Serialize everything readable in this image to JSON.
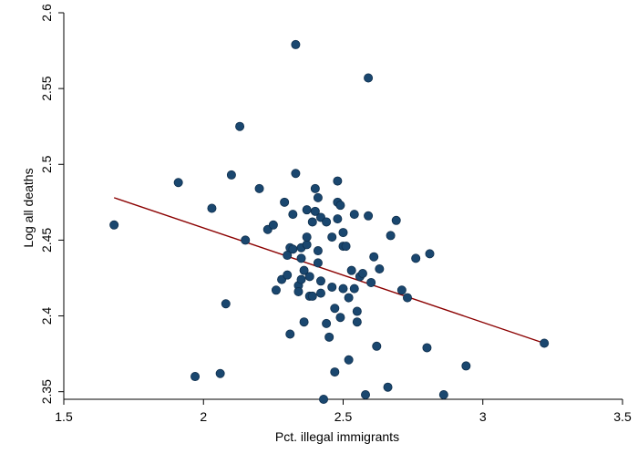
{
  "chart_data": {
    "type": "scatter",
    "title": "",
    "xlabel": "Pct. illegal immigrants",
    "ylabel": "Log all deaths",
    "xlim": [
      1.5,
      3.5
    ],
    "ylim": [
      2.345,
      2.6
    ],
    "xticks": [
      1.5,
      2,
      2.5,
      3,
      3.5
    ],
    "yticks": [
      2.35,
      2.4,
      2.45,
      2.5,
      2.55,
      2.6
    ],
    "xtick_labels": [
      "1.5",
      "2",
      "2.5",
      "3",
      "3.5"
    ],
    "ytick_labels": [
      "2.35",
      "2.4",
      "2.45",
      "2.5",
      "2.55",
      "2.6"
    ],
    "grid": false,
    "legend": "none",
    "marker_color": "#1a476f",
    "fit_line_color": "#8b0000",
    "fit_line": {
      "x": [
        1.68,
        3.22
      ],
      "y": [
        2.478,
        2.382
      ]
    },
    "points": [
      [
        1.68,
        2.46
      ],
      [
        1.91,
        2.488
      ],
      [
        1.97,
        2.36
      ],
      [
        2.03,
        2.471
      ],
      [
        2.06,
        2.362
      ],
      [
        2.08,
        2.408
      ],
      [
        2.1,
        2.493
      ],
      [
        2.13,
        2.525
      ],
      [
        2.15,
        2.45
      ],
      [
        2.2,
        2.484
      ],
      [
        2.23,
        2.457
      ],
      [
        2.25,
        2.46
      ],
      [
        2.26,
        2.417
      ],
      [
        2.28,
        2.424
      ],
      [
        2.29,
        2.475
      ],
      [
        2.3,
        2.44
      ],
      [
        2.3,
        2.427
      ],
      [
        2.31,
        2.445
      ],
      [
        2.31,
        2.388
      ],
      [
        2.32,
        2.467
      ],
      [
        2.32,
        2.444
      ],
      [
        2.33,
        2.579
      ],
      [
        2.33,
        2.494
      ],
      [
        2.34,
        2.42
      ],
      [
        2.34,
        2.416
      ],
      [
        2.35,
        2.445
      ],
      [
        2.35,
        2.424
      ],
      [
        2.35,
        2.438
      ],
      [
        2.36,
        2.43
      ],
      [
        2.36,
        2.396
      ],
      [
        2.37,
        2.447
      ],
      [
        2.37,
        2.47
      ],
      [
        2.37,
        2.452
      ],
      [
        2.38,
        2.426
      ],
      [
        2.38,
        2.413
      ],
      [
        2.39,
        2.462
      ],
      [
        2.39,
        2.413
      ],
      [
        2.4,
        2.484
      ],
      [
        2.4,
        2.469
      ],
      [
        2.41,
        2.443
      ],
      [
        2.41,
        2.435
      ],
      [
        2.41,
        2.478
      ],
      [
        2.42,
        2.465
      ],
      [
        2.42,
        2.423
      ],
      [
        2.42,
        2.415
      ],
      [
        2.43,
        2.345
      ],
      [
        2.44,
        2.395
      ],
      [
        2.44,
        2.462
      ],
      [
        2.45,
        2.386
      ],
      [
        2.46,
        2.419
      ],
      [
        2.46,
        2.452
      ],
      [
        2.47,
        2.363
      ],
      [
        2.47,
        2.405
      ],
      [
        2.48,
        2.464
      ],
      [
        2.48,
        2.475
      ],
      [
        2.48,
        2.489
      ],
      [
        2.49,
        2.473
      ],
      [
        2.49,
        2.399
      ],
      [
        2.5,
        2.418
      ],
      [
        2.5,
        2.446
      ],
      [
        2.5,
        2.455
      ],
      [
        2.51,
        2.446
      ],
      [
        2.52,
        2.412
      ],
      [
        2.52,
        2.371
      ],
      [
        2.53,
        2.43
      ],
      [
        2.54,
        2.418
      ],
      [
        2.54,
        2.467
      ],
      [
        2.55,
        2.403
      ],
      [
        2.55,
        2.396
      ],
      [
        2.56,
        2.426
      ],
      [
        2.57,
        2.428
      ],
      [
        2.58,
        2.348
      ],
      [
        2.59,
        2.557
      ],
      [
        2.59,
        2.466
      ],
      [
        2.6,
        2.422
      ],
      [
        2.61,
        2.439
      ],
      [
        2.62,
        2.38
      ],
      [
        2.63,
        2.431
      ],
      [
        2.66,
        2.353
      ],
      [
        2.67,
        2.453
      ],
      [
        2.69,
        2.463
      ],
      [
        2.71,
        2.417
      ],
      [
        2.73,
        2.412
      ],
      [
        2.76,
        2.438
      ],
      [
        2.8,
        2.379
      ],
      [
        2.81,
        2.441
      ],
      [
        2.86,
        2.348
      ],
      [
        2.94,
        2.367
      ],
      [
        3.22,
        2.382
      ]
    ]
  }
}
